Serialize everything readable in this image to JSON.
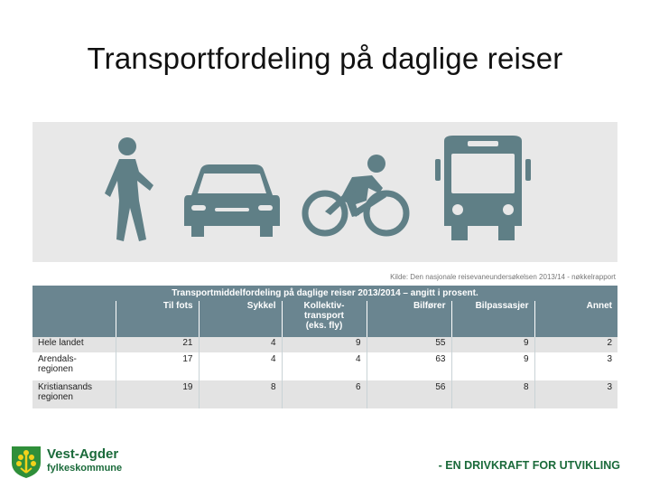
{
  "slide": {
    "title": "Transportfordeling på daglige reiser"
  },
  "figure": {
    "icons": [
      "pedestrian-icon",
      "car-icon",
      "cyclist-icon",
      "bus-icon"
    ],
    "icon_color": "#5f7f86",
    "band_color": "#e8e8e8",
    "source": "Kilde: Den nasjonale reisevaneundersøkelsen 2013/14 - nøkkelrapport",
    "table": {
      "caption": "Transportmiddelfordeling på daglige reiser 2013/2014 – angitt i prosent.",
      "header_color": "#6a8590",
      "columns": [
        "",
        "Til fots",
        "Sykkel",
        "Kollektiv-\ntransport\n(eks. fly)",
        "Bilfører",
        "Bilpassasjer",
        "Annet"
      ],
      "rows": [
        {
          "label": "Hele landet",
          "values": [
            "21",
            "4",
            "9",
            "55",
            "9",
            "2"
          ]
        },
        {
          "label": "Arendals-\nregionen",
          "values": [
            "17",
            "4",
            "4",
            "63",
            "9",
            "3"
          ]
        },
        {
          "label": "Kristiansands\nregionen",
          "values": [
            "19",
            "8",
            "6",
            "56",
            "8",
            "3"
          ]
        }
      ]
    }
  },
  "footer": {
    "logo_name": "Vest-Agder",
    "logo_sub": "fylkeskommune",
    "logo_color": "#1a6a3a",
    "slogan": "- EN DRIVKRAFT FOR UTVIKLING"
  }
}
